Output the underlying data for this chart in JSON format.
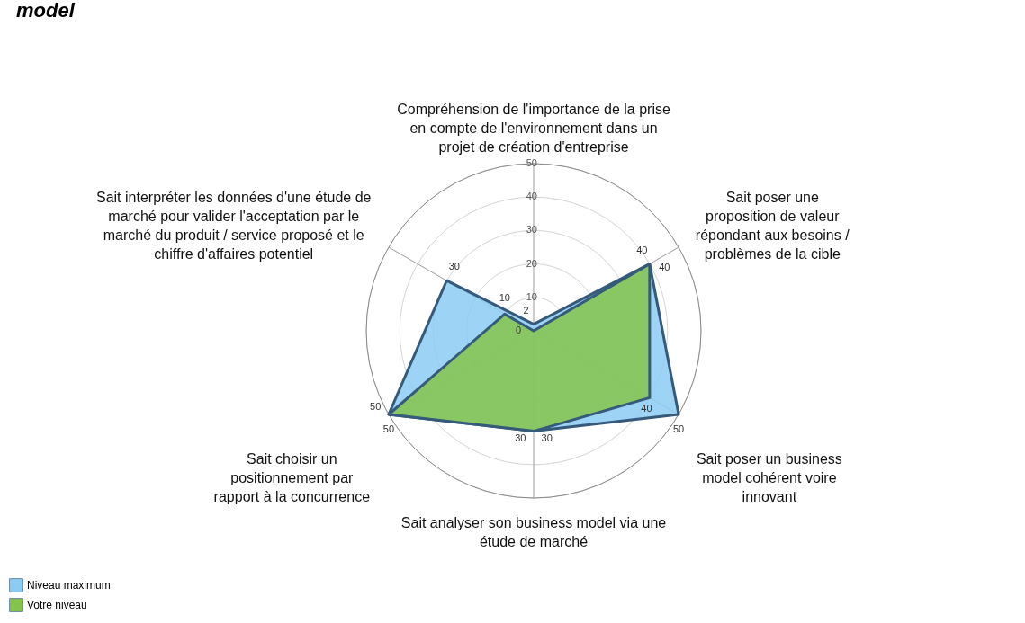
{
  "chart_data": {
    "type": "radar",
    "title": "model",
    "categories": [
      "Compréhension de l'importance de la prise en compte de l'environnement dans un projet de création d'entreprise",
      "Sait poser une proposition de valeur répondant aux besoins / problèmes de la cible",
      "Sait poser un business model cohérent voire innovant",
      "Sait analyser son business model via une étude de marché",
      "Sait choisir un positionnement par rapport à la concurrence",
      "Sait interpréter les données d'une étude de marché pour valider l'acceptation par le marché du produit / service proposé et le chiffre d'affaires potentiel"
    ],
    "series": [
      {
        "name": "Niveau maximum",
        "color": "#8ccbf2",
        "values": [
          2,
          40,
          50,
          30,
          50,
          30
        ]
      },
      {
        "name": "Votre niveau",
        "color": "#86c34a",
        "values": [
          0,
          40,
          40,
          30,
          50,
          10
        ]
      }
    ],
    "ylim": [
      0,
      50
    ],
    "yticks": [
      10,
      20,
      30,
      40,
      50
    ],
    "grid": true,
    "legend": "bottom left",
    "data_labels": true
  }
}
